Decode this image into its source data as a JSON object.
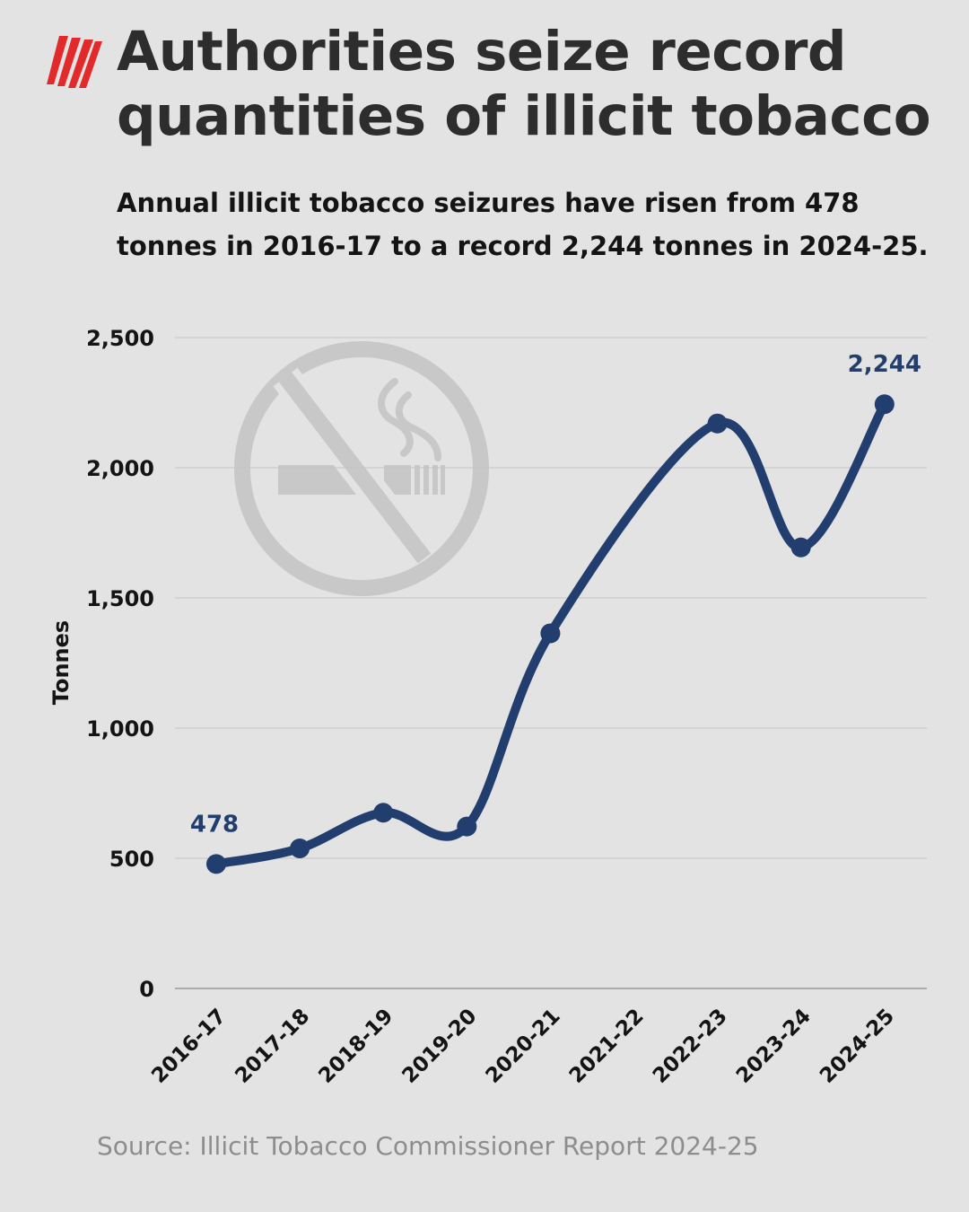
{
  "header": {
    "title_line1": "Authorities seize record",
    "title_line2": "quantities of illicit tobacco",
    "subtitle_line1": "Annual illicit tobacco seizures have risen from 478",
    "subtitle_line2": "tonnes in 2016-17 to a record 2,244 tonnes in 2024-25.",
    "logo_icon": "sbs-logo-icon"
  },
  "watermark_icon": "no-smoking-icon",
  "colors": {
    "background": "#e3e3e3",
    "line": "#213e6e",
    "accent": "#e32a2a",
    "grid": "#c4c4c4"
  },
  "chart_data": {
    "type": "line",
    "categories": [
      "2016-17",
      "2017-18",
      "2018-19",
      "2019-20",
      "2020-21",
      "2021-22",
      "2022-23",
      "2023-24",
      "2024-25"
    ],
    "series": [
      {
        "values": [
          478,
          538,
          675,
          622,
          1364,
          null,
          2170,
          1694,
          2244
        ],
        "markers": [
          true,
          true,
          true,
          true,
          true,
          false,
          true,
          true,
          true
        ]
      }
    ],
    "data_labels": [
      {
        "index": 0,
        "text": "478"
      },
      {
        "index": 8,
        "text": "2,244"
      }
    ],
    "ylabel": "Tonnes",
    "xlabel": "",
    "ylim": [
      0,
      2500
    ],
    "yticks": [
      0,
      500,
      1000,
      1500,
      2000,
      2500
    ],
    "ytick_labels": [
      "0",
      "500",
      "1,000",
      "1,500",
      "2,000",
      "2,500"
    ],
    "grid": true,
    "legend": "none"
  },
  "footer": {
    "source": "Source: Illicit Tobacco Commissioner Report 2024-25"
  }
}
